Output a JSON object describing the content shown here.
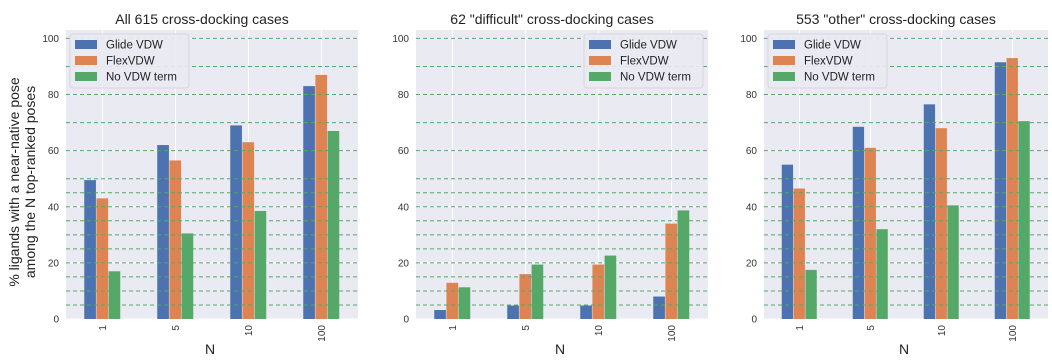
{
  "figure": {
    "ylabel_line1": "% ligands with a near-native pose",
    "ylabel_line2": "among the N top-ranked poses",
    "background_color": "#eaeaf2",
    "guide_line_color": "#55a868",
    "guide_line_values": [
      5,
      10,
      15,
      20,
      25,
      30,
      35,
      40,
      45,
      50,
      60,
      70,
      80,
      90,
      100
    ]
  },
  "chart_data": [
    {
      "type": "bar",
      "title": "All 615 cross-docking cases",
      "xlabel": "N",
      "ylabel": "% ligands with a near-native pose among the N top-ranked poses",
      "categories": [
        "1",
        "5",
        "10",
        "100"
      ],
      "ylim": [
        0,
        103
      ],
      "yticks": [
        0,
        20,
        40,
        60,
        80,
        100
      ],
      "legend_position": "top-left",
      "series": [
        {
          "name": "Glide VDW",
          "color": "#4c72b0",
          "values": [
            49.5,
            62,
            69,
            83
          ]
        },
        {
          "name": "FlexVDW",
          "color": "#dd8452",
          "values": [
            43,
            56.5,
            63,
            87
          ]
        },
        {
          "name": "No VDW term",
          "color": "#55a868",
          "values": [
            17,
            30.5,
            38.5,
            67
          ]
        }
      ]
    },
    {
      "type": "bar",
      "title": "62 \"difficult\" cross-docking cases",
      "xlabel": "N",
      "ylabel": "",
      "categories": [
        "1",
        "5",
        "10",
        "100"
      ],
      "ylim": [
        0,
        103
      ],
      "yticks": [
        0,
        20,
        40,
        60,
        80,
        100
      ],
      "legend_position": "top-right",
      "series": [
        {
          "name": "Glide VDW",
          "color": "#4c72b0",
          "values": [
            3.2,
            4.8,
            4.8,
            8
          ]
        },
        {
          "name": "FlexVDW",
          "color": "#dd8452",
          "values": [
            12.9,
            16,
            19.4,
            34
          ]
        },
        {
          "name": "No VDW term",
          "color": "#55a868",
          "values": [
            11.3,
            19.4,
            22.6,
            38.7
          ]
        }
      ]
    },
    {
      "type": "bar",
      "title": "553 \"other\" cross-docking cases",
      "xlabel": "N",
      "ylabel": "",
      "categories": [
        "1",
        "5",
        "10",
        "100"
      ],
      "ylim": [
        0,
        103
      ],
      "yticks": [
        0,
        20,
        40,
        60,
        80,
        100
      ],
      "legend_position": "top-left",
      "series": [
        {
          "name": "Glide VDW",
          "color": "#4c72b0",
          "values": [
            55,
            68.5,
            76.5,
            91.5
          ]
        },
        {
          "name": "FlexVDW",
          "color": "#dd8452",
          "values": [
            46.5,
            61,
            68,
            93
          ]
        },
        {
          "name": "No VDW term",
          "color": "#55a868",
          "values": [
            17.5,
            32,
            40.5,
            70.5
          ]
        }
      ]
    }
  ]
}
